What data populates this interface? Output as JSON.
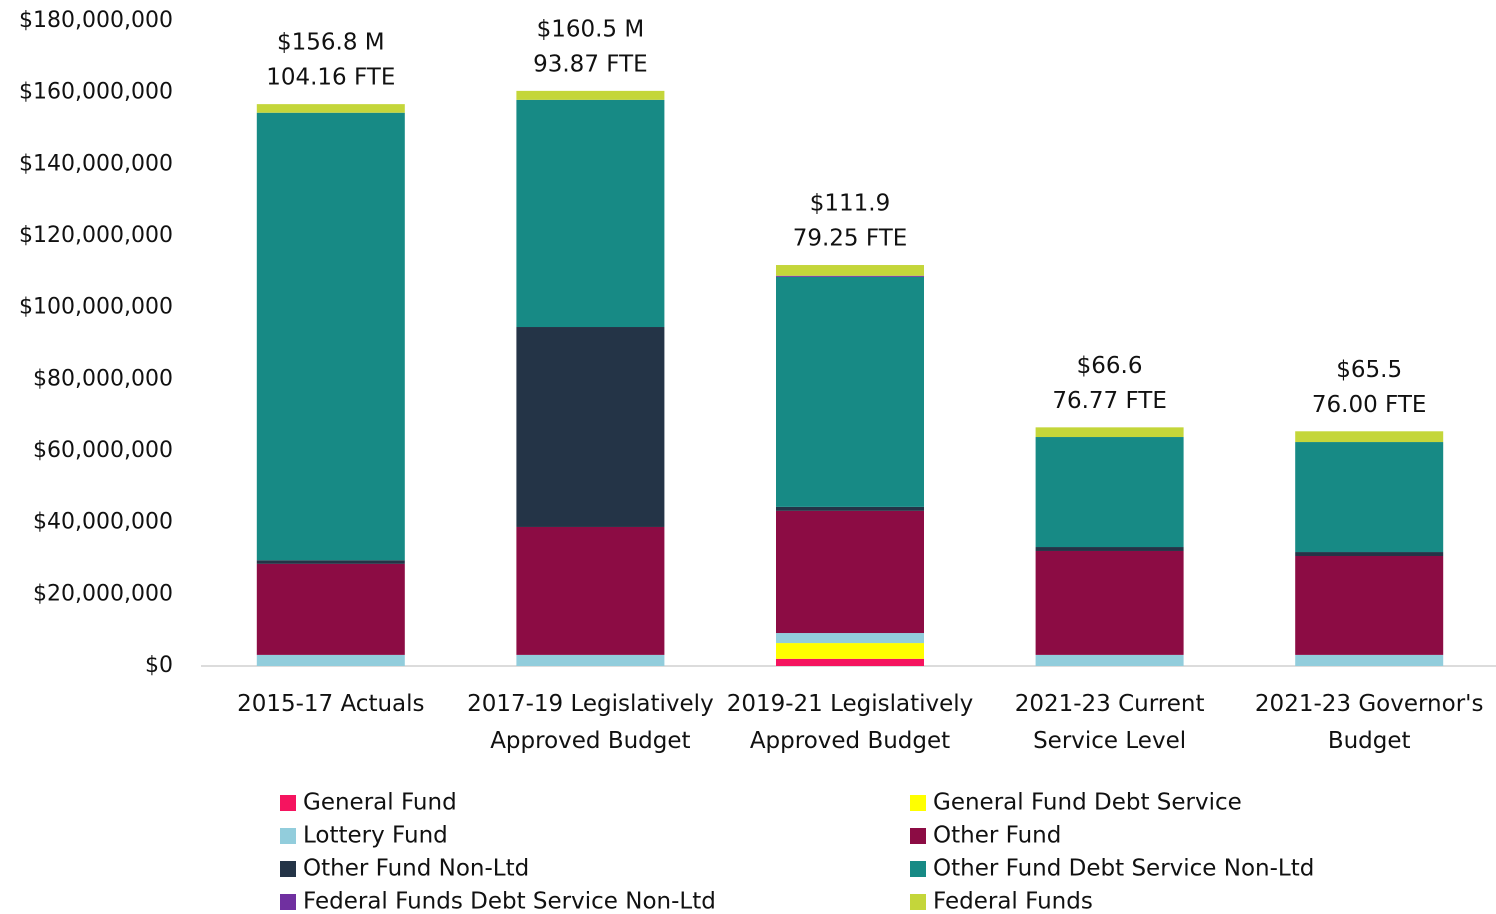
{
  "chart_data": {
    "type": "stacked_bar",
    "categories": [
      "2015-17 Actuals",
      "2017-19 Legislatively Approved Budget",
      "2019-21 Legislatively Approved Budget",
      "2021-23 Current Service Level",
      "2021-23 Governor's Budget"
    ],
    "annotations": [
      [
        "$156.8  M",
        "104.16 FTE"
      ],
      [
        "$160.5 M",
        "93.87 FTE"
      ],
      [
        "$111.9",
        "79.25 FTE"
      ],
      [
        "$66.6",
        "76.77 FTE"
      ],
      [
        "$65.5",
        "76.00 FTE"
      ]
    ],
    "series": [
      {
        "name": "General Fund",
        "color": "#f5145f",
        "values": [
          0,
          0,
          2000000,
          0,
          0
        ]
      },
      {
        "name": "General Fund Debt Service",
        "color": "#ffff00",
        "values": [
          0,
          0,
          4400000,
          0,
          0
        ]
      },
      {
        "name": "Lottery Fund",
        "color": "#92cddc",
        "values": [
          3100000,
          3100000,
          2800000,
          3100000,
          3100000
        ]
      },
      {
        "name": "Other Fund",
        "color": "#8c0c44",
        "values": [
          25400000,
          35700000,
          34100000,
          29000000,
          27600000
        ]
      },
      {
        "name": "Other Fund Non-Ltd",
        "color": "#243447",
        "values": [
          1000000,
          55800000,
          1100000,
          1100000,
          1100000
        ]
      },
      {
        "name": "Other Fund Debt Service Non-Ltd",
        "color": "#178a85",
        "values": [
          124900000,
          63400000,
          64200000,
          30700000,
          30700000
        ]
      },
      {
        "name": "Federal Funds Debt Service Non-Ltd",
        "color": "#7030a0",
        "values": [
          0,
          0,
          300000,
          0,
          0
        ]
      },
      {
        "name": "Federal Funds",
        "color": "#c4d63a",
        "values": [
          2400000,
          2500000,
          3000000,
          2700000,
          3000000
        ]
      }
    ],
    "ylim": [
      0,
      180000000
    ],
    "yticks": [
      {
        "value": 0,
        "label": "$0"
      },
      {
        "value": 20000000,
        "label": "$20,000,000"
      },
      {
        "value": 40000000,
        "label": "$40,000,000"
      },
      {
        "value": 60000000,
        "label": "$60,000,000"
      },
      {
        "value": 80000000,
        "label": "$80,000,000"
      },
      {
        "value": 100000000,
        "label": "$100,000,000"
      },
      {
        "value": 120000000,
        "label": "$120,000,000"
      },
      {
        "value": 140000000,
        "label": "$140,000,000"
      },
      {
        "value": 160000000,
        "label": "$160,000,000"
      },
      {
        "value": 180000000,
        "label": "$180,000,000"
      }
    ],
    "grid": false,
    "legend": "bottom"
  }
}
